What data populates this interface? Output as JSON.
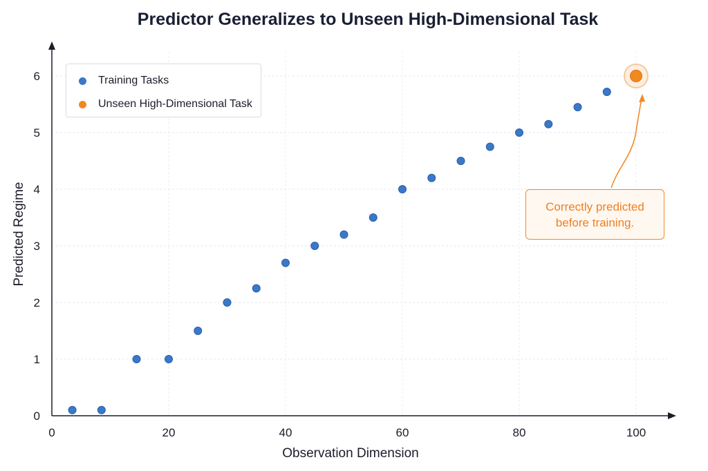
{
  "chart_data": {
    "type": "scatter",
    "title": "Predictor Generalizes to Unseen High-Dimensional Task",
    "xlabel": "Observation Dimension",
    "ylabel": "Predicted Regime",
    "xlim": [
      0,
      105
    ],
    "ylim": [
      0,
      6.5
    ],
    "x_ticks": [
      0,
      20,
      40,
      60,
      80,
      100
    ],
    "y_ticks": [
      0,
      1,
      2,
      3,
      4,
      5,
      6
    ],
    "grid": true,
    "legend_position": "top-left",
    "series": [
      {
        "name": "Training Tasks",
        "color": "#3a78c9",
        "points": [
          {
            "x": 3.5,
            "y": 0.1
          },
          {
            "x": 8.5,
            "y": 0.1
          },
          {
            "x": 14.5,
            "y": 1.0
          },
          {
            "x": 20,
            "y": 1.0
          },
          {
            "x": 25,
            "y": 1.5
          },
          {
            "x": 30,
            "y": 2.0
          },
          {
            "x": 35,
            "y": 2.25
          },
          {
            "x": 40,
            "y": 2.7
          },
          {
            "x": 45,
            "y": 3.0
          },
          {
            "x": 50,
            "y": 3.2
          },
          {
            "x": 55,
            "y": 3.5
          },
          {
            "x": 60,
            "y": 4.0
          },
          {
            "x": 65,
            "y": 4.2
          },
          {
            "x": 70,
            "y": 4.5
          },
          {
            "x": 75,
            "y": 4.75
          },
          {
            "x": 80,
            "y": 5.0
          },
          {
            "x": 85,
            "y": 5.15
          },
          {
            "x": 90,
            "y": 5.45
          },
          {
            "x": 95,
            "y": 5.72
          }
        ]
      },
      {
        "name": "Unseen High-Dimensional Task",
        "color": "#f08a1f",
        "points": [
          {
            "x": 100,
            "y": 6.0
          }
        ]
      }
    ],
    "annotation": {
      "lines": [
        "Correctly predicted",
        "before training."
      ],
      "color": "#ef7f1f"
    }
  }
}
